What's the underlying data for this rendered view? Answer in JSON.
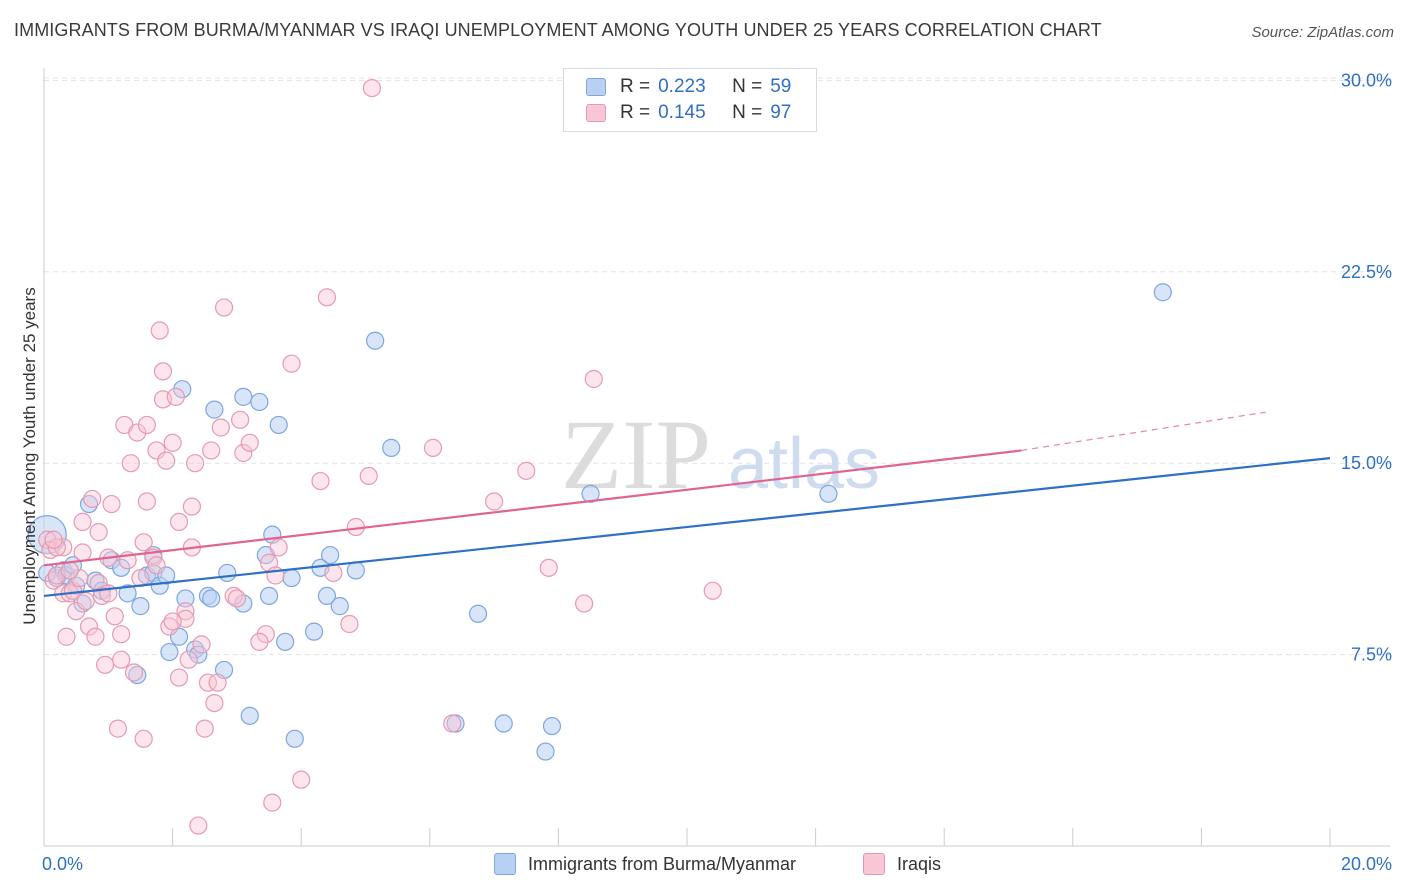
{
  "title": "IMMIGRANTS FROM BURMA/MYANMAR VS IRAQI UNEMPLOYMENT AMONG YOUTH UNDER 25 YEARS CORRELATION CHART",
  "source": "Source: ZipAtlas.com",
  "watermark": {
    "zip": "ZIP",
    "atlas": "atlas"
  },
  "legend": {
    "r_label": "R =",
    "n_label": "N =",
    "series": [
      {
        "name": "Immigrants from Burma/Myanmar",
        "r": "0.223",
        "n": "59"
      },
      {
        "name": "Iraqis",
        "r": "0.145",
        "n": "97"
      }
    ]
  },
  "colors": {
    "blue_fill": "#b8d0f2",
    "blue_stroke": "#7ea6dd",
    "blue_line": "#2f6fc6",
    "pink_fill": "#f8c6d4",
    "pink_stroke": "#e59ab2",
    "pink_line": "#e0648e",
    "tick_text": "#2f6fc6"
  },
  "chart_data": {
    "type": "scatter",
    "title": "IMMIGRANTS FROM BURMA/MYANMAR VS IRAQI UNEMPLOYMENT AMONG YOUTH UNDER 25 YEARS CORRELATION CHART",
    "xlabel": "",
    "ylabel": "Unemployment Among Youth under 25 years",
    "xlim": [
      0,
      20
    ],
    "ylim": [
      0,
      30.8
    ],
    "x_tick_labels": [
      "0.0%",
      "20.0%"
    ],
    "y_ticks": [
      7.5,
      15.0,
      22.5,
      30.0
    ],
    "y_tick_labels": [
      "7.5%",
      "15.0%",
      "22.5%",
      "30.0%"
    ],
    "grid": true,
    "legend_position": "top-center",
    "series": [
      {
        "name": "Immigrants from Burma/Myanmar",
        "trend": {
          "x": [
            0,
            20
          ],
          "y": [
            9.8,
            15.2
          ]
        },
        "points": [
          [
            0.05,
            12.2
          ],
          [
            0.2,
            10.5
          ],
          [
            0.3,
            10.8
          ],
          [
            0.35,
            10.6
          ],
          [
            0.45,
            11.0
          ],
          [
            0.5,
            10.2
          ],
          [
            0.6,
            9.5
          ],
          [
            0.7,
            13.4
          ],
          [
            0.8,
            10.4
          ],
          [
            0.9,
            10.0
          ],
          [
            1.05,
            11.2
          ],
          [
            1.2,
            10.9
          ],
          [
            1.3,
            9.9
          ],
          [
            1.45,
            6.7
          ],
          [
            1.5,
            9.4
          ],
          [
            1.6,
            10.6
          ],
          [
            1.7,
            10.7
          ],
          [
            1.7,
            11.4
          ],
          [
            1.8,
            10.2
          ],
          [
            1.9,
            10.6
          ],
          [
            1.95,
            7.6
          ],
          [
            2.1,
            8.2
          ],
          [
            2.15,
            17.9
          ],
          [
            2.2,
            9.7
          ],
          [
            2.35,
            7.7
          ],
          [
            2.4,
            7.5
          ],
          [
            2.55,
            9.8
          ],
          [
            2.6,
            9.7
          ],
          [
            2.65,
            17.1
          ],
          [
            2.8,
            6.9
          ],
          [
            2.85,
            10.7
          ],
          [
            3.1,
            9.5
          ],
          [
            3.1,
            17.6
          ],
          [
            3.2,
            5.1
          ],
          [
            3.35,
            17.4
          ],
          [
            3.45,
            11.4
          ],
          [
            3.5,
            9.8
          ],
          [
            3.55,
            12.2
          ],
          [
            3.65,
            16.5
          ],
          [
            3.75,
            8.0
          ],
          [
            3.85,
            10.5
          ],
          [
            3.9,
            4.2
          ],
          [
            4.2,
            8.4
          ],
          [
            4.3,
            10.9
          ],
          [
            4.4,
            9.8
          ],
          [
            4.45,
            11.4
          ],
          [
            4.6,
            9.4
          ],
          [
            4.85,
            10.8
          ],
          [
            5.15,
            19.8
          ],
          [
            5.4,
            15.6
          ],
          [
            6.4,
            4.8
          ],
          [
            6.75,
            9.1
          ],
          [
            7.15,
            4.8
          ],
          [
            7.8,
            3.7
          ],
          [
            7.9,
            4.7
          ],
          [
            8.5,
            13.8
          ],
          [
            12.2,
            13.8
          ],
          [
            17.4,
            21.7
          ],
          [
            0.05,
            10.7
          ]
        ]
      },
      {
        "name": "Iraqis",
        "trend": {
          "x": [
            0,
            15.2
          ],
          "y": [
            11.0,
            15.5
          ]
        },
        "trend_dashed": {
          "x": [
            15.2,
            19.0
          ],
          "y": [
            15.5,
            17.0
          ]
        },
        "points": [
          [
            0.05,
            12.0
          ],
          [
            0.1,
            11.6
          ],
          [
            0.15,
            10.4
          ],
          [
            0.2,
            10.6
          ],
          [
            0.3,
            9.9
          ],
          [
            0.3,
            11.7
          ],
          [
            0.35,
            8.2
          ],
          [
            0.4,
            9.9
          ],
          [
            0.45,
            10.0
          ],
          [
            0.5,
            9.2
          ],
          [
            0.55,
            10.5
          ],
          [
            0.6,
            11.5
          ],
          [
            0.6,
            12.7
          ],
          [
            0.65,
            9.6
          ],
          [
            0.7,
            8.6
          ],
          [
            0.75,
            13.6
          ],
          [
            0.8,
            8.2
          ],
          [
            0.85,
            10.3
          ],
          [
            0.85,
            12.3
          ],
          [
            0.9,
            9.8
          ],
          [
            0.95,
            7.1
          ],
          [
            1.0,
            11.3
          ],
          [
            1.05,
            13.4
          ],
          [
            1.1,
            9.0
          ],
          [
            1.15,
            4.6
          ],
          [
            1.2,
            8.3
          ],
          [
            1.2,
            7.3
          ],
          [
            1.25,
            16.5
          ],
          [
            1.3,
            11.2
          ],
          [
            1.35,
            15.0
          ],
          [
            1.4,
            6.8
          ],
          [
            1.45,
            16.2
          ],
          [
            1.5,
            10.5
          ],
          [
            1.55,
            4.2
          ],
          [
            1.55,
            11.9
          ],
          [
            1.6,
            16.5
          ],
          [
            1.6,
            13.5
          ],
          [
            1.7,
            11.3
          ],
          [
            1.75,
            15.5
          ],
          [
            1.75,
            11.0
          ],
          [
            1.8,
            20.2
          ],
          [
            1.85,
            17.5
          ],
          [
            1.85,
            18.6
          ],
          [
            1.9,
            15.1
          ],
          [
            1.95,
            8.6
          ],
          [
            2.0,
            15.8
          ],
          [
            2.05,
            17.6
          ],
          [
            2.1,
            6.6
          ],
          [
            2.1,
            12.7
          ],
          [
            2.2,
            9.2
          ],
          [
            2.2,
            8.9
          ],
          [
            2.25,
            7.3
          ],
          [
            2.3,
            11.7
          ],
          [
            2.3,
            13.3
          ],
          [
            2.35,
            15.0
          ],
          [
            2.4,
            0.8
          ],
          [
            2.45,
            7.9
          ],
          [
            2.5,
            4.6
          ],
          [
            2.55,
            6.4
          ],
          [
            2.6,
            15.5
          ],
          [
            2.65,
            5.6
          ],
          [
            2.7,
            6.4
          ],
          [
            2.75,
            16.4
          ],
          [
            2.8,
            21.1
          ],
          [
            2.95,
            9.8
          ],
          [
            3.05,
            16.7
          ],
          [
            3.1,
            15.4
          ],
          [
            3.2,
            15.8
          ],
          [
            3.45,
            8.3
          ],
          [
            3.5,
            11.1
          ],
          [
            3.55,
            1.7
          ],
          [
            3.6,
            10.6
          ],
          [
            3.65,
            11.7
          ],
          [
            3.85,
            18.9
          ],
          [
            4.0,
            2.6
          ],
          [
            4.3,
            14.3
          ],
          [
            4.4,
            21.5
          ],
          [
            4.5,
            10.7
          ],
          [
            4.75,
            8.7
          ],
          [
            4.85,
            12.5
          ],
          [
            5.05,
            14.5
          ],
          [
            5.1,
            29.7
          ],
          [
            6.35,
            4.8
          ],
          [
            7.0,
            13.5
          ],
          [
            7.5,
            14.7
          ],
          [
            7.85,
            10.9
          ],
          [
            8.4,
            9.5
          ],
          [
            8.55,
            18.3
          ],
          [
            10.4,
            10.0
          ],
          [
            3.0,
            9.7
          ],
          [
            0.2,
            11.7
          ],
          [
            0.4,
            10.8
          ],
          [
            1.0,
            9.9
          ],
          [
            6.05,
            15.6
          ],
          [
            3.35,
            8.0
          ],
          [
            0.15,
            12.0
          ],
          [
            2.0,
            8.8
          ]
        ]
      }
    ]
  }
}
